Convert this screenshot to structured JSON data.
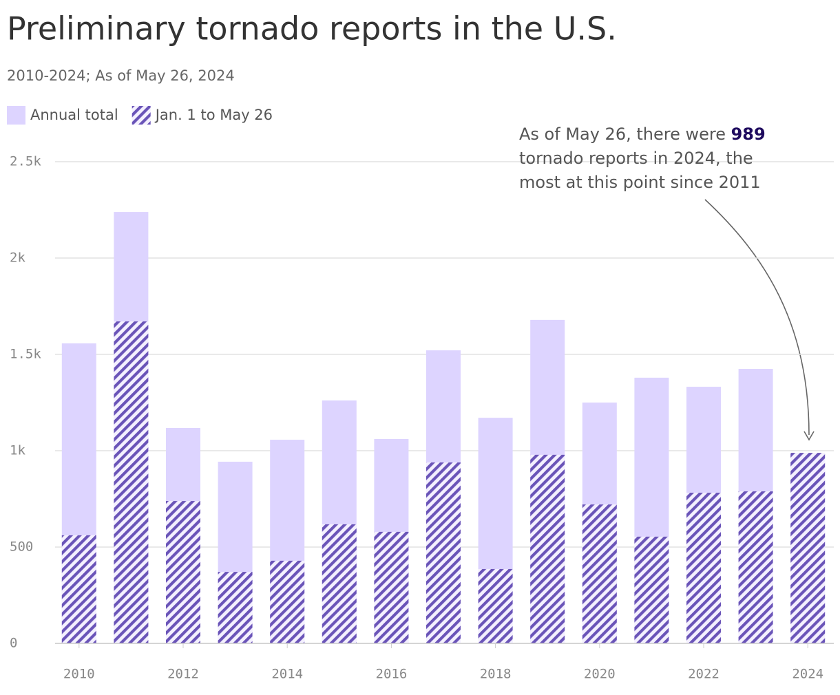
{
  "chart_data": {
    "type": "bar",
    "title": "Preliminary tornado reports in the U.S.",
    "subtitle": "2010-2024; As of May 26, 2024",
    "x": [
      2010,
      2011,
      2012,
      2013,
      2014,
      2015,
      2016,
      2017,
      2018,
      2019,
      2020,
      2021,
      2022,
      2023,
      2024
    ],
    "series": [
      {
        "name": "Annual total",
        "color": "#ddd4ff",
        "hatch": false,
        "values": [
          1557,
          2239,
          1118,
          943,
          1057,
          1261,
          1061,
          1521,
          1171,
          1679,
          1250,
          1379,
          1332,
          1425,
          null
        ]
      },
      {
        "name": "Jan. 1 to May 26",
        "color": "#6a54b8",
        "hatch": true,
        "values": [
          561,
          1671,
          739,
          371,
          429,
          618,
          579,
          939,
          386,
          979,
          721,
          554,
          782,
          789,
          989
        ]
      }
    ],
    "xlim": [
      2009.5,
      2024.5
    ],
    "xticks": [
      2010,
      2012,
      2014,
      2016,
      2018,
      2020,
      2022,
      2024
    ],
    "ylim": [
      0,
      2500
    ],
    "yticks": [
      0,
      500,
      {
        "value": 1000,
        "label": "1k"
      },
      {
        "value": 1500,
        "label": "1.5k"
      },
      {
        "value": 2000,
        "label": "2k"
      },
      {
        "value": 2500,
        "label": "2.5k"
      }
    ],
    "grid": true,
    "legend": "top-left",
    "annotation": {
      "lines": [
        [
          "As of May 26, there were ",
          "989"
        ],
        [
          "tornado reports in 2024, the"
        ],
        [
          "most at this point since 2011"
        ]
      ]
    }
  }
}
